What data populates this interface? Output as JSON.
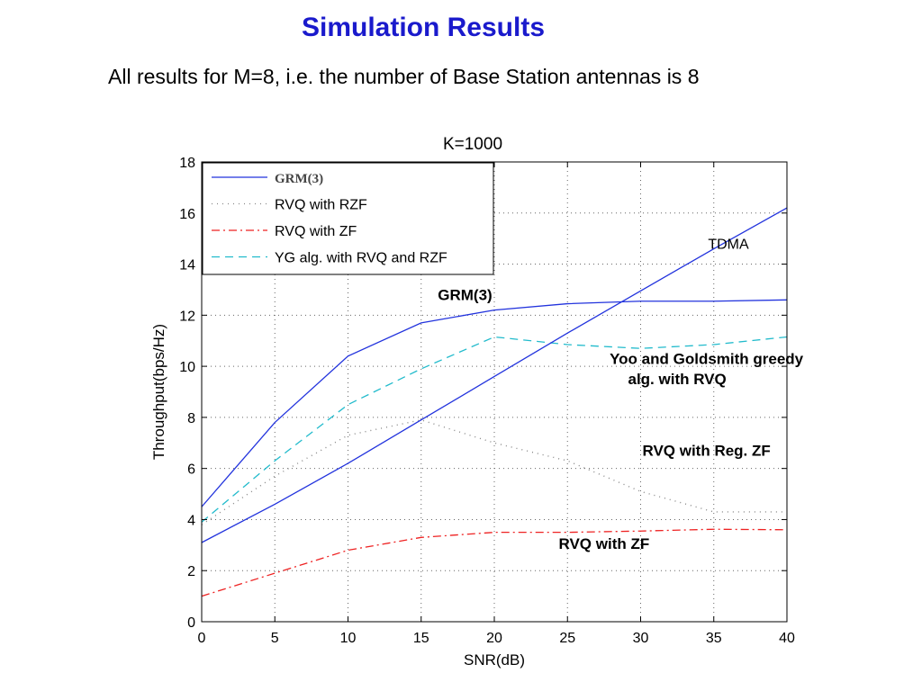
{
  "slide": {
    "title": "Simulation Results",
    "subtitle": "All results for M=8, i.e. the number of Base Station antennas is 8"
  },
  "chart_data": {
    "type": "line",
    "title": "K=1000",
    "xlabel": "SNR(dB)",
    "ylabel": "Throughput(bps/Hz)",
    "xlim": [
      0,
      40
    ],
    "ylim": [
      0,
      18
    ],
    "xticks": [
      0,
      5,
      10,
      15,
      20,
      25,
      30,
      35,
      40
    ],
    "yticks": [
      0,
      2,
      4,
      6,
      8,
      10,
      12,
      14,
      16,
      18
    ],
    "grid": true,
    "legend_position": "top-left",
    "x": [
      0,
      5,
      10,
      15,
      20,
      25,
      30,
      35,
      40
    ],
    "series": [
      {
        "name": "GRM(3)",
        "color": "#2233dd",
        "style": "solid",
        "values": [
          4.5,
          7.8,
          10.4,
          11.7,
          12.2,
          12.45,
          12.55,
          12.55,
          12.6
        ]
      },
      {
        "name": "RVQ with RZF",
        "color": "#888888",
        "style": "dotted",
        "values": [
          3.8,
          5.7,
          7.3,
          7.9,
          7.0,
          6.3,
          5.1,
          4.3,
          4.3
        ]
      },
      {
        "name": "RVQ with ZF",
        "color": "#ee2222",
        "style": "dashdot",
        "values": [
          1.0,
          1.9,
          2.8,
          3.3,
          3.5,
          3.5,
          3.55,
          3.62,
          3.6
        ]
      },
      {
        "name": "YG alg. with RVQ and RZF",
        "color": "#22bbcc",
        "style": "dashed",
        "values": [
          3.9,
          6.3,
          8.5,
          9.9,
          11.15,
          10.85,
          10.7,
          10.85,
          11.15
        ]
      },
      {
        "name": "",
        "color": "#2233dd",
        "style": "solid",
        "legend": false,
        "values": [
          3.1,
          4.6,
          6.2,
          7.9,
          9.6,
          11.3,
          12.95,
          14.6,
          16.2
        ]
      }
    ],
    "annotations": [
      {
        "text": "GRM(3)",
        "x": 18,
        "y": 12.6,
        "style": "bold"
      },
      {
        "text": "TDMA",
        "x": 36,
        "y": 14.6,
        "style": "plain"
      },
      {
        "text": "Yoo and Goldsmith greedy",
        "x": 34.5,
        "y": 10.1,
        "style": "bold"
      },
      {
        "text": "alg. with RVQ",
        "x": 32.5,
        "y": 9.3,
        "style": "bold"
      },
      {
        "text": "RVQ with Reg. ZF",
        "x": 34.5,
        "y": 6.5,
        "style": "bold"
      },
      {
        "text": "RVQ with ZF",
        "x": 27.5,
        "y": 2.85,
        "style": "bold"
      }
    ]
  }
}
